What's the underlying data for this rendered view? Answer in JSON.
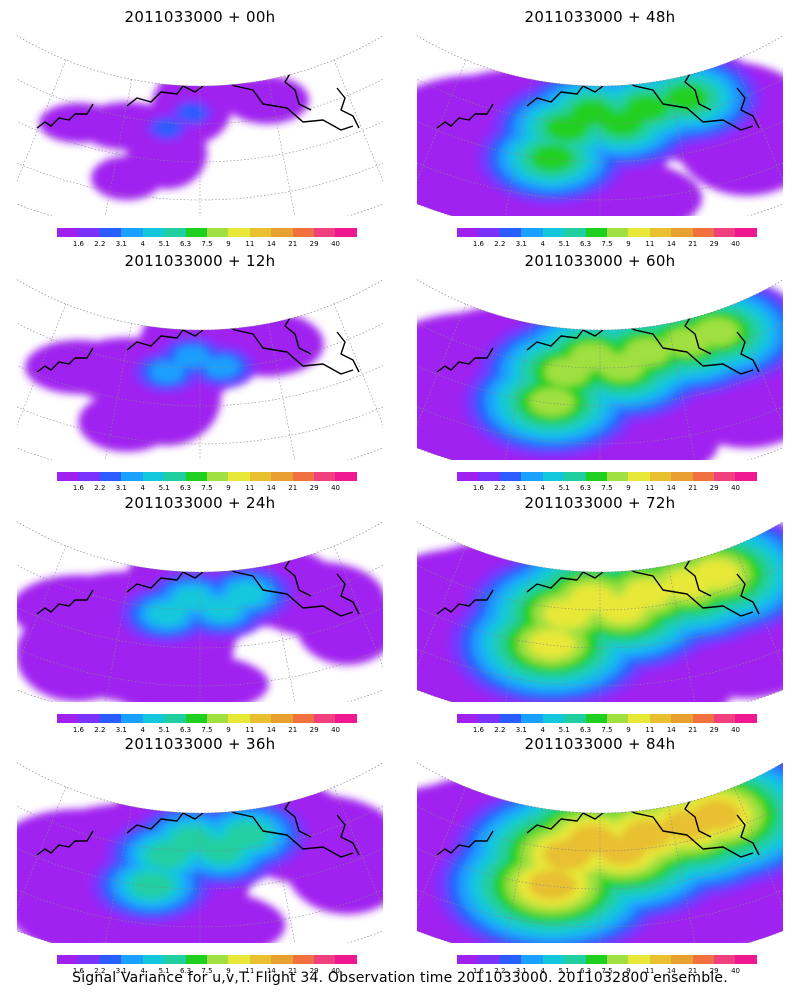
{
  "caption": "Signal Variance for u,v,T. Flight 34. Observation time 2011033000. 2011032800 ensemble.",
  "colorbar": {
    "labels": [
      "1.6",
      "2.2",
      "3.1",
      "4",
      "5.1",
      "6.3",
      "7.5",
      "9",
      "11",
      "14",
      "21",
      "29",
      "40"
    ],
    "colors": [
      "#a020f0",
      "#7a32ff",
      "#2a5cff",
      "#1aa0ff",
      "#14c8dc",
      "#20cfa0",
      "#20d020",
      "#a0e040",
      "#e8e838",
      "#e8c030",
      "#e8a030",
      "#f07040",
      "#f04080",
      "#f01890"
    ]
  },
  "panels": [
    {
      "title": "2011033000 + 00h",
      "level": 0
    },
    {
      "title": "2011033000 + 48h",
      "level": 4
    },
    {
      "title": "2011033000 + 12h",
      "level": 1
    },
    {
      "title": "2011033000 + 60h",
      "level": 5
    },
    {
      "title": "2011033000 + 24h",
      "level": 2
    },
    {
      "title": "2011033000 + 72h",
      "level": 6
    },
    {
      "title": "2011033000 + 36h",
      "level": 3
    },
    {
      "title": "2011033000 + 84h",
      "level": 7
    }
  ]
}
